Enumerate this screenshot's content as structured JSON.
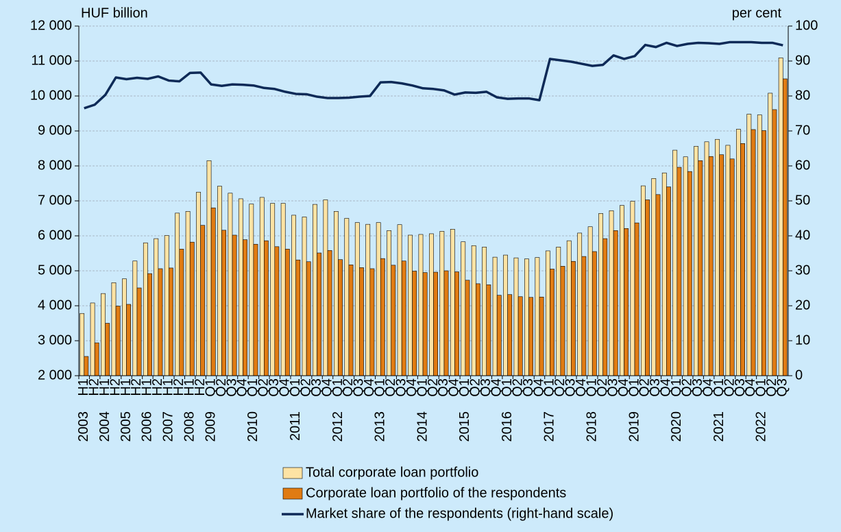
{
  "chart_data": {
    "type": "bar",
    "y_label": "HUF billion",
    "y2_label": "per cent",
    "categories": [
      "H1",
      "H2",
      "H1",
      "H2",
      "H1",
      "H2",
      "H1",
      "H2",
      "H1",
      "H2",
      "H1",
      "H2",
      "Q1",
      "Q2",
      "Q3",
      "Q4",
      "Q1",
      "Q2",
      "Q3",
      "Q4",
      "Q1",
      "Q2",
      "Q3",
      "Q4",
      "Q1",
      "Q2",
      "Q3",
      "Q4",
      "Q1",
      "Q2",
      "Q3",
      "Q4",
      "Q1",
      "Q2",
      "Q3",
      "Q4",
      "Q1",
      "Q2",
      "Q3",
      "Q4",
      "Q1",
      "Q2",
      "Q3",
      "Q4",
      "Q1",
      "Q2",
      "Q3",
      "Q4",
      "Q1",
      "Q2",
      "Q3",
      "Q4",
      "Q1",
      "Q2",
      "Q3",
      "Q4",
      "Q1",
      "Q2",
      "Q3",
      "Q4",
      "Q1",
      "Q2",
      "Q3",
      "Q4",
      "Q1",
      "Q2",
      "Q3"
    ],
    "year_labels": [
      "2003",
      "2004",
      "2005",
      "2006",
      "2007",
      "2008",
      "2009",
      "2010",
      "2011",
      "2012",
      "2013",
      "2014",
      "2015",
      "2016",
      "2017",
      "2018",
      "2019",
      "2020",
      "2021",
      "2022"
    ],
    "series": [
      {
        "name": "Total corporate loan portfolio",
        "type": "bar",
        "color": "#fde3a4",
        "values": [
          3780,
          4080,
          4350,
          4660,
          4770,
          5280,
          5800,
          5920,
          6010,
          6650,
          6700,
          7250,
          8150,
          7420,
          7220,
          7060,
          6910,
          7100,
          6930,
          6930,
          6590,
          6540,
          6900,
          7030,
          6700,
          6500,
          6380,
          6330,
          6380,
          6150,
          6320,
          6020,
          6040,
          6060,
          6130,
          6190,
          5830,
          5720,
          5680,
          5390,
          5450,
          5370,
          5340,
          5380,
          5570,
          5680,
          5860,
          6080,
          6260,
          6640,
          6720,
          6870,
          6990,
          7430,
          7640,
          7800,
          8450,
          8260,
          8560,
          8690,
          8760,
          8590,
          9050,
          9480,
          9460,
          10080,
          11090
        ]
      },
      {
        "name": "Corporate loan portfolio of the respondents",
        "type": "bar",
        "color": "#e07b12",
        "values": [
          2550,
          2940,
          3500,
          3990,
          4040,
          4510,
          4920,
          5060,
          5080,
          5620,
          5820,
          6300,
          6800,
          6160,
          6020,
          5890,
          5760,
          5860,
          5690,
          5620,
          5310,
          5260,
          5510,
          5580,
          5320,
          5170,
          5090,
          5060,
          5350,
          5160,
          5280,
          4990,
          4950,
          4960,
          5000,
          4970,
          4730,
          4630,
          4600,
          4300,
          4320,
          4260,
          4240,
          4250,
          5050,
          5130,
          5270,
          5410,
          5550,
          5920,
          6150,
          6210,
          6370,
          7030,
          7180,
          7400,
          7960,
          7840,
          8150,
          8270,
          8320,
          8200,
          8640,
          9040,
          9010,
          9610,
          10490
        ]
      },
      {
        "name": "Market share of the respondents (right-hand scale)",
        "type": "line",
        "axis": "y2",
        "color": "#0e2a57",
        "values": [
          76.5,
          77.5,
          80.3,
          85.3,
          84.8,
          85.2,
          84.9,
          85.6,
          84.4,
          84.2,
          86.6,
          86.7,
          83.3,
          82.9,
          83.3,
          83.2,
          83.0,
          82.3,
          82.0,
          81.2,
          80.6,
          80.5,
          79.8,
          79.4,
          79.4,
          79.5,
          79.8,
          80.0,
          83.9,
          84.0,
          83.6,
          83.0,
          82.2,
          82.0,
          81.6,
          80.4,
          81.0,
          80.9,
          81.2,
          79.6,
          79.2,
          79.3,
          79.3,
          78.8,
          90.6,
          90.2,
          89.8,
          89.2,
          88.6,
          88.9,
          91.6,
          90.6,
          91.4,
          94.6,
          94.0,
          95.2,
          94.3,
          94.9,
          95.2,
          95.1,
          94.9,
          95.4,
          95.4,
          95.4,
          95.2,
          95.2,
          94.5
        ]
      }
    ],
    "ylim": [
      2000,
      12000
    ],
    "yticks": [
      {
        "value": 2000,
        "label": "2 000"
      },
      {
        "value": 3000,
        "label": "3 000"
      },
      {
        "value": 4000,
        "label": "4 000"
      },
      {
        "value": 5000,
        "label": "5 000"
      },
      {
        "value": 6000,
        "label": "6 000"
      },
      {
        "value": 7000,
        "label": "7 000"
      },
      {
        "value": 8000,
        "label": "8 000"
      },
      {
        "value": 9000,
        "label": "9 000"
      },
      {
        "value": 10000,
        "label": "10 000"
      },
      {
        "value": 11000,
        "label": "11 000"
      },
      {
        "value": 12000,
        "label": "12 000"
      }
    ],
    "y2lim": [
      0,
      100
    ],
    "y2ticks": [
      0,
      10,
      20,
      30,
      40,
      50,
      60,
      70,
      80,
      90,
      100
    ],
    "grid": true,
    "legend": "bottom"
  }
}
